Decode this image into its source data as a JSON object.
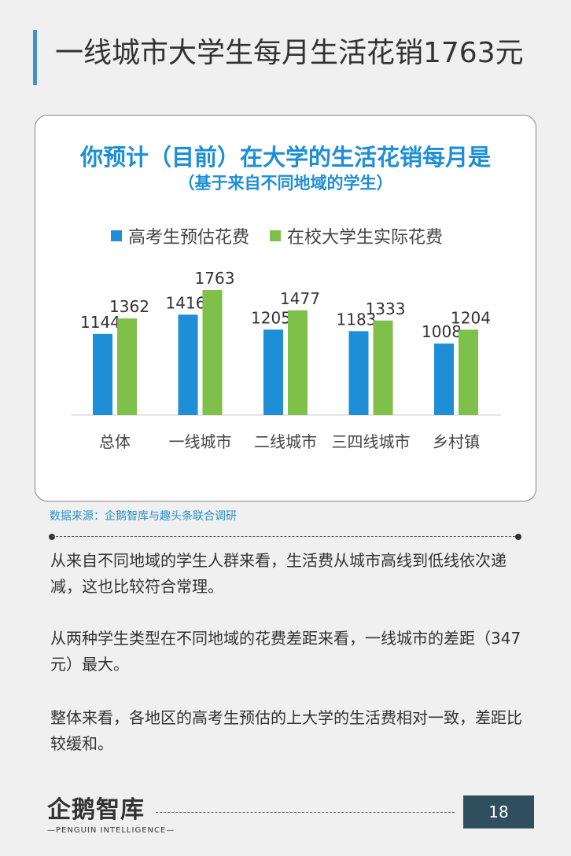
{
  "header": {
    "title": "一线城市大学生每月生活花销1763元"
  },
  "chart_data": {
    "type": "bar",
    "title": "你预计（目前）在大学的生活花销每月是",
    "subtitle": "（基于来自不同地域的学生）",
    "categories": [
      "总体",
      "一线城市",
      "二线城市",
      "三四线城市",
      "乡村镇"
    ],
    "series": [
      {
        "name": "高考生预估花费",
        "color": "#1e8fd6",
        "values": [
          1144,
          1416,
          1205,
          1183,
          1008
        ]
      },
      {
        "name": "在校大学生实际花费",
        "color": "#7ec04a",
        "values": [
          1362,
          1763,
          1477,
          1333,
          1204
        ]
      }
    ],
    "ylim": [
      0,
      1763
    ],
    "grid": false,
    "legend_position": "top"
  },
  "source": "数据来源：企鹅智库与趣头条联合调研",
  "paragraphs": [
    "从来自不同地域的学生人群来看，生活费从城市高线到低线依次递减，这也比较符合常理。",
    "从两种学生类型在不同地域的花费差距来看，一线城市的差距（347元）最大。",
    "整体来看，各地区的高考生预估的上大学的生活费相对一致，差距比较缓和。"
  ],
  "footer": {
    "logo_text": "企鹅智库",
    "logo_subtext": "—PENGUIN INTELLIGENCE—",
    "page_number": "18"
  }
}
